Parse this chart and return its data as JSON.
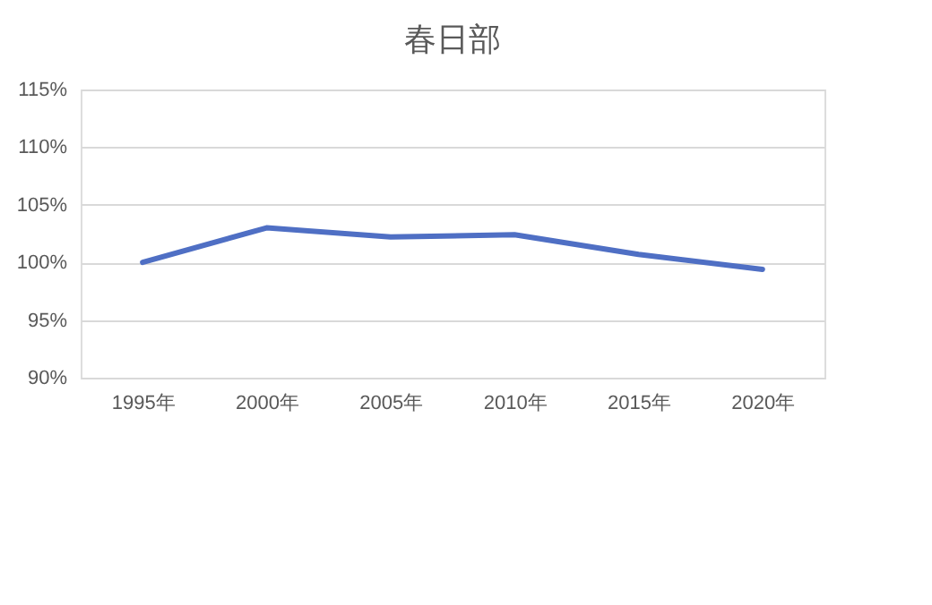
{
  "chart_data": {
    "type": "line",
    "title": "春日部",
    "categories": [
      "1995年",
      "2000年",
      "2005年",
      "2010年",
      "2015年",
      "2020年"
    ],
    "series": [
      {
        "color": "#4f6fc4",
        "values": [
          100,
          103.0,
          102.2,
          102.4,
          100.7,
          99.4
        ]
      }
    ],
    "ylim": [
      90,
      115
    ],
    "yticks": [
      {
        "value": 90,
        "label": "90%"
      },
      {
        "value": 95,
        "label": "95%"
      },
      {
        "value": 100,
        "label": "100%"
      },
      {
        "value": 105,
        "label": "105%"
      },
      {
        "value": 110,
        "label": "110%"
      },
      {
        "value": 115,
        "label": "115%"
      }
    ],
    "grid": "y",
    "marker": "none",
    "line_style": "solid"
  }
}
